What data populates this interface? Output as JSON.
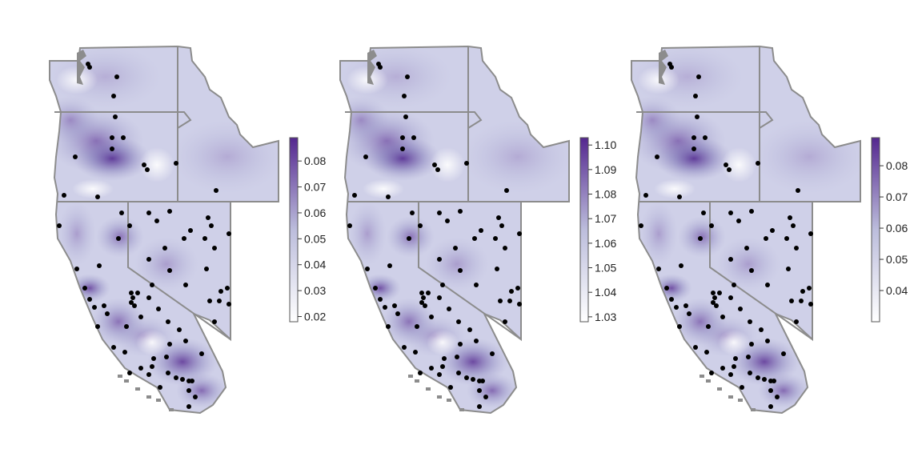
{
  "colors": {
    "scale_low": "#ffffff",
    "scale_high": "#54278f",
    "state_border": "#8c8c8c",
    "station_point": "#000000"
  },
  "panels": [
    {
      "id": "panel-1",
      "colorbar_ticks": [
        "0.02",
        "0.03",
        "0.04",
        "0.05",
        "0.06",
        "0.07",
        "0.08"
      ],
      "range": [
        0.018,
        0.089
      ]
    },
    {
      "id": "panel-2",
      "colorbar_ticks": [
        "1.03",
        "1.04",
        "1.05",
        "1.06",
        "1.07",
        "1.08",
        "1.09",
        "1.10"
      ],
      "range": [
        1.028,
        1.103
      ]
    },
    {
      "id": "panel-3",
      "colorbar_ticks": [
        "0.04",
        "0.05",
        "0.06",
        "0.07",
        "0.08"
      ],
      "range": [
        0.03,
        0.089
      ]
    }
  ]
}
